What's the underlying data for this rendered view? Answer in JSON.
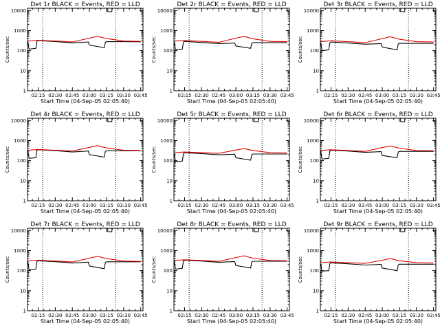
{
  "chart_data": [
    {
      "type": "line",
      "title": "Det 1r BLACK = Events, RED = LLD",
      "xlabel": "Start Time (04-Sep-05 02:05:40)",
      "ylabel": "Counts/sec",
      "x_ticks": [
        "02:15",
        "02:30",
        "02:45",
        "03:00",
        "03:15",
        "03:30",
        "03:45"
      ],
      "y_ticks": [
        "1",
        "10",
        "100",
        "1000",
        "10000"
      ],
      "y_scale": "log",
      "ylim": [
        1,
        13000
      ],
      "dotted_lines_at": [
        "02:19",
        "03:23"
      ],
      "series": [
        {
          "name": "Events",
          "color": "#000000",
          "x": [
            "02:06",
            "02:07",
            "02:13",
            "02:14",
            "02:15",
            "02:30",
            "02:45",
            "02:59",
            "03:00",
            "03:13",
            "03:14",
            "03:15",
            "03:30",
            "03:45"
          ],
          "y": [
            280,
            120,
            130,
            300,
            320,
            285,
            245,
            270,
            190,
            140,
            260,
            280,
            280,
            275
          ]
        },
        {
          "name": "LLD",
          "color": "#e00000",
          "x": [
            "02:06",
            "02:15",
            "02:30",
            "02:45",
            "03:00",
            "03:07",
            "03:15",
            "03:30",
            "03:45"
          ],
          "y": [
            300,
            330,
            300,
            270,
            420,
            520,
            400,
            300,
            290
          ]
        }
      ]
    },
    {
      "type": "line",
      "title": "Det 2r BLACK = Events, RED = LLD",
      "xlabel": "Start Time (04-Sep-05 02:05:40)",
      "ylabel": "Counts/sec",
      "x_ticks": [
        "02:15",
        "02:30",
        "02:45",
        "03:00",
        "03:15",
        "03:30",
        "03:45"
      ],
      "y_ticks": [
        "1",
        "10",
        "100",
        "1000",
        "10000"
      ],
      "y_scale": "log",
      "ylim": [
        1,
        13000
      ],
      "dotted_lines_at": [
        "02:19",
        "03:23"
      ],
      "series": [
        {
          "name": "Events",
          "color": "#000000",
          "x": [
            "02:06",
            "02:07",
            "02:13",
            "02:14",
            "02:15",
            "02:30",
            "02:45",
            "02:59",
            "03:00",
            "03:13",
            "03:14",
            "03:15",
            "03:30",
            "03:45"
          ],
          "y": [
            270,
            110,
            120,
            270,
            290,
            255,
            225,
            240,
            170,
            130,
            235,
            250,
            250,
            250
          ]
        },
        {
          "name": "LLD",
          "color": "#e00000",
          "x": [
            "02:06",
            "02:15",
            "02:30",
            "02:45",
            "03:00",
            "03:07",
            "03:15",
            "03:30",
            "03:45"
          ],
          "y": [
            300,
            320,
            290,
            260,
            420,
            510,
            390,
            290,
            280
          ]
        }
      ]
    },
    {
      "type": "line",
      "title": "Det 3r BLACK = Events, RED = LLD",
      "xlabel": "Start Time (04-Sep-05 02:05:40)",
      "ylabel": "Counts/sec",
      "x_ticks": [
        "02:15",
        "02:30",
        "02:45",
        "03:00",
        "03:15",
        "03:30",
        "03:45"
      ],
      "y_ticks": [
        "1",
        "10",
        "100",
        "1000",
        "10000"
      ],
      "y_scale": "log",
      "ylim": [
        1,
        13000
      ],
      "dotted_lines_at": [
        "02:19",
        "03:23"
      ],
      "series": [
        {
          "name": "Events",
          "color": "#000000",
          "x": [
            "02:06",
            "02:07",
            "02:13",
            "02:14",
            "02:15",
            "02:30",
            "02:45",
            "02:59",
            "03:00",
            "03:13",
            "03:14",
            "03:15",
            "03:30",
            "03:45"
          ],
          "y": [
            250,
            100,
            110,
            250,
            270,
            240,
            210,
            225,
            150,
            110,
            215,
            230,
            230,
            230
          ]
        },
        {
          "name": "LLD",
          "color": "#e00000",
          "x": [
            "02:06",
            "02:15",
            "02:30",
            "02:45",
            "03:00",
            "03:07",
            "03:15",
            "03:30",
            "03:45"
          ],
          "y": [
            280,
            310,
            280,
            250,
            400,
            490,
            370,
            280,
            270
          ]
        }
      ]
    },
    {
      "type": "line",
      "title": "Det 4r BLACK = Events, RED = LLD",
      "xlabel": "Start Time (04-Sep-05 02:05:40)",
      "ylabel": "Counts/sec",
      "x_ticks": [
        "02:15",
        "02:30",
        "02:45",
        "03:00",
        "03:15",
        "03:30",
        "03:45"
      ],
      "y_ticks": [
        "1",
        "10",
        "100",
        "1000",
        "10000"
      ],
      "y_scale": "log",
      "ylim": [
        1,
        13000
      ],
      "dotted_lines_at": [
        "02:19",
        "03:23"
      ],
      "series": [
        {
          "name": "Events",
          "color": "#000000",
          "x": [
            "02:06",
            "02:07",
            "02:13",
            "02:14",
            "02:15",
            "02:30",
            "02:45",
            "02:59",
            "03:00",
            "03:13",
            "03:14",
            "03:15",
            "03:30",
            "03:45"
          ],
          "y": [
            320,
            130,
            140,
            330,
            350,
            315,
            270,
            300,
            200,
            150,
            290,
            310,
            310,
            310
          ]
        },
        {
          "name": "LLD",
          "color": "#e00000",
          "x": [
            "02:06",
            "02:15",
            "02:30",
            "02:45",
            "03:00",
            "03:07",
            "03:15",
            "03:30",
            "03:45"
          ],
          "y": [
            330,
            360,
            330,
            300,
            460,
            560,
            430,
            330,
            320
          ]
        }
      ]
    },
    {
      "type": "line",
      "title": "Det 5r BLACK = Events, RED = LLD",
      "xlabel": "Start Time (04-Sep-05 02:05:40)",
      "ylabel": "Counts/sec",
      "x_ticks": [
        "02:15",
        "02:30",
        "02:45",
        "03:00",
        "03:15",
        "03:30",
        "03:45"
      ],
      "y_ticks": [
        "1",
        "10",
        "100",
        "1000",
        "10000"
      ],
      "y_scale": "log",
      "ylim": [
        1,
        13000
      ],
      "dotted_lines_at": [
        "02:19",
        "03:23"
      ],
      "series": [
        {
          "name": "Events",
          "color": "#000000",
          "x": [
            "02:06",
            "02:07",
            "02:13",
            "02:14",
            "02:15",
            "02:30",
            "02:45",
            "02:59",
            "03:00",
            "03:13",
            "03:14",
            "03:15",
            "03:30",
            "03:45"
          ],
          "y": [
            230,
            90,
            95,
            230,
            250,
            225,
            195,
            210,
            140,
            105,
            200,
            215,
            215,
            215
          ]
        },
        {
          "name": "LLD",
          "color": "#e00000",
          "x": [
            "02:06",
            "02:15",
            "02:30",
            "02:45",
            "03:00",
            "03:07",
            "03:15",
            "03:30",
            "03:45"
          ],
          "y": [
            250,
            270,
            250,
            230,
            340,
            400,
            320,
            250,
            240
          ]
        }
      ]
    },
    {
      "type": "line",
      "title": "Det 6r BLACK = Events, RED = LLD",
      "xlabel": "Start Time (04-Sep-05 02:05:40)",
      "ylabel": "Counts/sec",
      "x_ticks": [
        "02:15",
        "02:30",
        "02:45",
        "03:00",
        "03:15",
        "03:30",
        "03:45"
      ],
      "y_ticks": [
        "1",
        "10",
        "100",
        "1000",
        "10000"
      ],
      "y_scale": "log",
      "ylim": [
        1,
        13000
      ],
      "dotted_lines_at": [
        "02:19",
        "03:23"
      ],
      "series": [
        {
          "name": "Events",
          "color": "#000000",
          "x": [
            "02:06",
            "02:07",
            "02:13",
            "02:14",
            "02:15",
            "02:30",
            "02:45",
            "02:59",
            "03:00",
            "03:13",
            "03:14",
            "03:15",
            "03:30",
            "03:45"
          ],
          "y": [
            300,
            120,
            130,
            310,
            330,
            300,
            260,
            280,
            180,
            140,
            270,
            290,
            290,
            290
          ]
        },
        {
          "name": "LLD",
          "color": "#e00000",
          "x": [
            "02:06",
            "02:15",
            "02:30",
            "02:45",
            "03:00",
            "03:07",
            "03:15",
            "03:30",
            "03:45"
          ],
          "y": [
            320,
            350,
            320,
            290,
            450,
            540,
            420,
            320,
            310
          ]
        }
      ]
    },
    {
      "type": "line",
      "title": "Det 7r BLACK = Events, RED = LLD",
      "xlabel": "Start Time (04-Sep-05 02:05:40)",
      "ylabel": "Counts/sec",
      "x_ticks": [
        "02:15",
        "02:30",
        "02:45",
        "03:00",
        "03:15",
        "03:30",
        "03:45"
      ],
      "y_ticks": [
        "1",
        "10",
        "100",
        "1000",
        "10000"
      ],
      "y_scale": "log",
      "ylim": [
        1,
        13000
      ],
      "dotted_lines_at": [
        "02:19",
        "03:23"
      ],
      "series": [
        {
          "name": "Events",
          "color": "#000000",
          "x": [
            "02:06",
            "02:07",
            "02:13",
            "02:14",
            "02:15",
            "02:30",
            "02:45",
            "02:59",
            "03:00",
            "03:13",
            "03:14",
            "03:15",
            "03:30",
            "03:45"
          ],
          "y": [
            280,
            110,
            120,
            290,
            310,
            280,
            240,
            265,
            170,
            125,
            255,
            275,
            275,
            275
          ]
        },
        {
          "name": "LLD",
          "color": "#e00000",
          "x": [
            "02:06",
            "02:15",
            "02:30",
            "02:45",
            "03:00",
            "03:07",
            "03:15",
            "03:30",
            "03:45"
          ],
          "y": [
            300,
            330,
            300,
            270,
            420,
            520,
            400,
            300,
            290
          ]
        }
      ]
    },
    {
      "type": "line",
      "title": "Det 8r BLACK = Events, RED = LLD",
      "xlabel": "Start Time (04-Sep-05 02:05:40)",
      "ylabel": "Counts/sec",
      "x_ticks": [
        "02:15",
        "02:30",
        "02:45",
        "03:00",
        "03:15",
        "03:30",
        "03:45"
      ],
      "y_ticks": [
        "1",
        "10",
        "100",
        "1000",
        "10000"
      ],
      "y_scale": "log",
      "ylim": [
        1,
        13000
      ],
      "dotted_lines_at": [
        "02:19",
        "03:23"
      ],
      "series": [
        {
          "name": "Events",
          "color": "#000000",
          "x": [
            "02:06",
            "02:07",
            "02:13",
            "02:14",
            "02:15",
            "02:30",
            "02:45",
            "02:59",
            "03:00",
            "03:13",
            "03:14",
            "03:15",
            "03:30",
            "03:45"
          ],
          "y": [
            300,
            120,
            130,
            310,
            330,
            300,
            260,
            285,
            180,
            135,
            275,
            295,
            295,
            295
          ]
        },
        {
          "name": "LLD",
          "color": "#e00000",
          "x": [
            "02:06",
            "02:15",
            "02:30",
            "02:45",
            "03:00",
            "03:07",
            "03:15",
            "03:30",
            "03:45"
          ],
          "y": [
            320,
            350,
            320,
            290,
            450,
            550,
            420,
            320,
            310
          ]
        }
      ]
    },
    {
      "type": "line",
      "title": "Det 9r BLACK = Events, RED = LLD",
      "xlabel": "Start Time (04-Sep-05 02:05:40)",
      "ylabel": "Counts/sec",
      "x_ticks": [
        "02:15",
        "02:30",
        "02:45",
        "03:00",
        "03:15",
        "03:30",
        "03:45"
      ],
      "y_ticks": [
        "1",
        "10",
        "100",
        "1000",
        "10000"
      ],
      "y_scale": "log",
      "ylim": [
        1,
        13000
      ],
      "dotted_lines_at": [
        "02:19",
        "03:23"
      ],
      "series": [
        {
          "name": "Events",
          "color": "#000000",
          "x": [
            "02:06",
            "02:07",
            "02:13",
            "02:14",
            "02:15",
            "02:30",
            "02:45",
            "02:59",
            "03:00",
            "03:13",
            "03:14",
            "03:15",
            "03:30",
            "03:45"
          ],
          "y": [
            220,
            95,
            100,
            225,
            245,
            220,
            190,
            205,
            135,
            100,
            195,
            210,
            210,
            210
          ]
        },
        {
          "name": "LLD",
          "color": "#e00000",
          "x": [
            "02:06",
            "02:15",
            "02:30",
            "02:45",
            "03:00",
            "03:07",
            "03:15",
            "03:30",
            "03:45"
          ],
          "y": [
            250,
            270,
            250,
            230,
            330,
            400,
            310,
            250,
            240
          ]
        }
      ]
    }
  ]
}
